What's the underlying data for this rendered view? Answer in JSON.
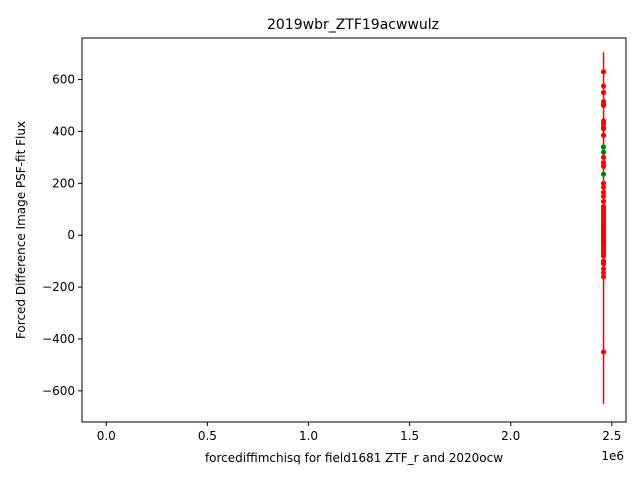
{
  "chart_data": {
    "type": "scatter",
    "title": "2019wbr_ZTF19acwwulz",
    "xlabel": "forcediffimchisq for field1681 ZTF_r and 2020ocw",
    "ylabel": "Forced Difference Image PSF-fit Flux",
    "x_offset_label": "1e6",
    "xlim": [
      -120000,
      2570000
    ],
    "ylim": [
      -720,
      760
    ],
    "x_ticks": [
      0,
      500000,
      1000000,
      1500000,
      2000000,
      2500000
    ],
    "x_tick_labels": [
      "0.0",
      "0.5",
      "1.0",
      "1.5",
      "2.0",
      "2.5"
    ],
    "y_ticks": [
      -600,
      -400,
      -200,
      0,
      200,
      400,
      600
    ],
    "y_tick_labels": [
      "−600",
      "−400",
      "−200",
      "0",
      "200",
      "400",
      "600"
    ],
    "grid": false,
    "legend": "none",
    "series": [
      {
        "color": "#ff0000",
        "error_range": [
          -650,
          705
        ],
        "x": 2458900,
        "y": [
          630,
          575,
          550,
          515,
          505,
          500,
          440,
          430,
          415,
          410,
          385,
          300,
          280,
          270,
          265,
          200,
          185,
          165,
          150,
          130,
          110,
          100,
          90,
          80,
          70,
          60,
          50,
          40,
          35,
          30,
          25,
          20,
          15,
          10,
          5,
          0,
          -5,
          -10,
          -15,
          -20,
          -25,
          -30,
          -40,
          -50,
          -60,
          -70,
          -80,
          -100,
          -110,
          -130,
          -145,
          -160,
          -450
        ]
      },
      {
        "color": "#008000",
        "x": 2458900,
        "y": [
          340,
          320,
          235
        ]
      }
    ]
  }
}
